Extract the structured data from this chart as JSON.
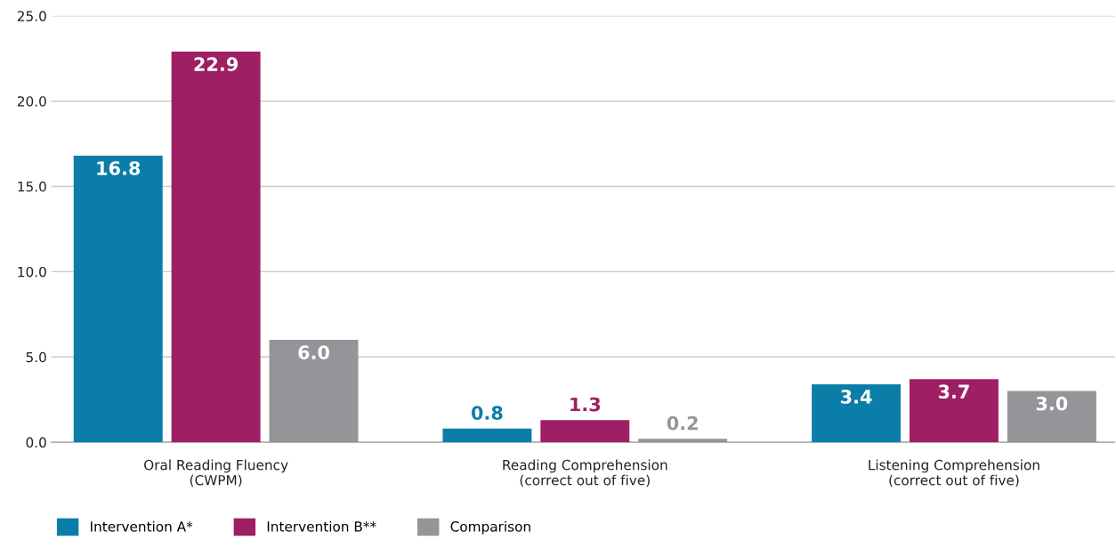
{
  "chart_data": {
    "type": "bar",
    "categories": [
      "Oral Reading Fluency\n(CWPM)",
      "Reading Comprehension\n(correct out of five)",
      "Listening Comprehension\n(correct out of five)"
    ],
    "series": [
      {
        "name": "Intervention A*",
        "color": "#0a7ea8",
        "values": [
          16.8,
          0.8,
          3.4
        ],
        "value_labels": [
          "16.8",
          "0.8",
          "3.4"
        ]
      },
      {
        "name": "Intervention B**",
        "color": "#9e1f63",
        "values": [
          22.9,
          1.3,
          3.7
        ],
        "value_labels": [
          "22.9",
          "1.3",
          "3.7"
        ]
      },
      {
        "name": "Comparison",
        "color": "#939598",
        "values": [
          6.0,
          0.2,
          3.0
        ],
        "value_labels": [
          "6.0",
          "0.2",
          "3.0"
        ]
      }
    ],
    "ylim": [
      0,
      25
    ],
    "yticks": [
      {
        "value": 0,
        "label": "0.0"
      },
      {
        "value": 5,
        "label": "5.0"
      },
      {
        "value": 10,
        "label": "10.0"
      },
      {
        "value": 15,
        "label": "15.0"
      },
      {
        "value": 20,
        "label": "20.0"
      },
      {
        "value": 25,
        "label": "25.0"
      }
    ],
    "grid": "y",
    "legend": "bottom left"
  }
}
